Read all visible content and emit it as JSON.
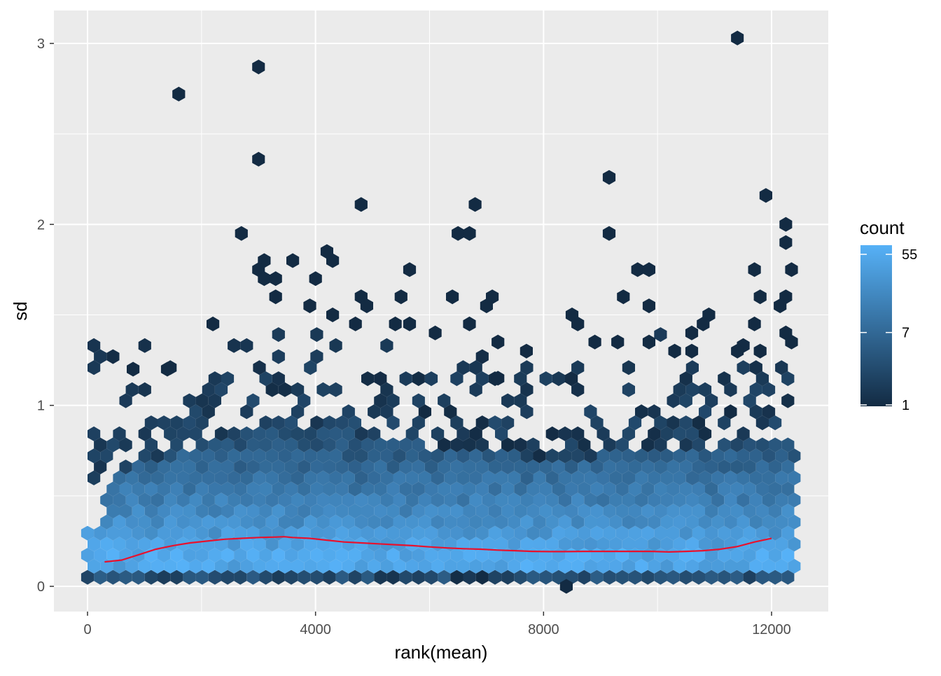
{
  "chart_data": {
    "type": "hexbin",
    "title": "",
    "xlabel": "rank(mean)",
    "ylabel": "sd",
    "xlim": [
      -750,
      13000
    ],
    "ylim": [
      -0.14,
      3.16
    ],
    "x_ticks": [
      0,
      4000,
      8000,
      12000
    ],
    "x_tick_labels": [
      "0",
      "4000",
      "8000",
      "12000"
    ],
    "y_ticks": [
      0,
      1,
      2,
      3
    ],
    "y_tick_labels": [
      "0",
      "1",
      "2",
      "3"
    ],
    "grid": true,
    "legend": {
      "title": "count",
      "placement": "right",
      "scale": "log",
      "breaks": [
        55,
        7,
        1
      ],
      "break_labels": [
        "55",
        "7",
        "1"
      ],
      "range": [
        1,
        70
      ],
      "low_color": "#132B43",
      "high_color": "#56B1F7"
    },
    "density_profile": {
      "note": "",
      "x": [
        0,
        1500,
        3000,
        4500,
        6000,
        7500,
        9000,
        10500,
        12000
      ],
      "core_top_sd": [
        0.55,
        0.75,
        0.85,
        0.85,
        0.78,
        0.72,
        0.72,
        0.75,
        0.8
      ],
      "peak_sd": 0.15
    },
    "outliers": [
      {
        "x": 1600,
        "y": 2.72
      },
      {
        "x": 3000,
        "y": 2.87
      },
      {
        "x": 3000,
        "y": 2.36
      },
      {
        "x": 11400,
        "y": 3.03
      },
      {
        "x": 9150,
        "y": 2.26
      },
      {
        "x": 11900,
        "y": 2.16
      },
      {
        "x": 4800,
        "y": 2.11
      },
      {
        "x": 6800,
        "y": 2.11
      },
      {
        "x": 2700,
        "y": 1.95
      },
      {
        "x": 6500,
        "y": 1.95
      },
      {
        "x": 6700,
        "y": 1.95
      },
      {
        "x": 9150,
        "y": 1.95
      },
      {
        "x": 12250,
        "y": 2.0
      },
      {
        "x": 12250,
        "y": 1.9
      },
      {
        "x": 4200,
        "y": 1.85
      },
      {
        "x": 4300,
        "y": 1.8
      },
      {
        "x": 3100,
        "y": 1.8
      },
      {
        "x": 3600,
        "y": 1.8
      },
      {
        "x": 3000,
        "y": 1.75
      },
      {
        "x": 5650,
        "y": 1.75
      },
      {
        "x": 9650,
        "y": 1.75
      },
      {
        "x": 9850,
        "y": 1.75
      },
      {
        "x": 11700,
        "y": 1.75
      },
      {
        "x": 12350,
        "y": 1.75
      },
      {
        "x": 3100,
        "y": 1.7
      },
      {
        "x": 3300,
        "y": 1.7
      },
      {
        "x": 4000,
        "y": 1.7
      },
      {
        "x": 3300,
        "y": 1.6
      },
      {
        "x": 4800,
        "y": 1.6
      },
      {
        "x": 5500,
        "y": 1.6
      },
      {
        "x": 6400,
        "y": 1.6
      },
      {
        "x": 7100,
        "y": 1.6
      },
      {
        "x": 9400,
        "y": 1.6
      },
      {
        "x": 11800,
        "y": 1.6
      },
      {
        "x": 12250,
        "y": 1.6
      },
      {
        "x": 3900,
        "y": 1.55
      },
      {
        "x": 4900,
        "y": 1.55
      },
      {
        "x": 7000,
        "y": 1.55
      },
      {
        "x": 9850,
        "y": 1.55
      },
      {
        "x": 12150,
        "y": 1.55
      },
      {
        "x": 8500,
        "y": 1.5
      },
      {
        "x": 10900,
        "y": 1.5
      },
      {
        "x": 4300,
        "y": 1.5
      },
      {
        "x": 2200,
        "y": 1.45
      },
      {
        "x": 4700,
        "y": 1.45
      },
      {
        "x": 5400,
        "y": 1.45
      },
      {
        "x": 5650,
        "y": 1.45
      },
      {
        "x": 6700,
        "y": 1.45
      },
      {
        "x": 8600,
        "y": 1.45
      },
      {
        "x": 10800,
        "y": 1.45
      },
      {
        "x": 11700,
        "y": 1.45
      },
      {
        "x": 10600,
        "y": 1.4
      },
      {
        "x": 12250,
        "y": 1.4
      },
      {
        "x": 6100,
        "y": 1.4
      },
      {
        "x": 7200,
        "y": 1.35
      },
      {
        "x": 8900,
        "y": 1.35
      },
      {
        "x": 9300,
        "y": 1.35
      },
      {
        "x": 9850,
        "y": 1.35
      },
      {
        "x": 12350,
        "y": 1.35
      },
      {
        "x": 7700,
        "y": 1.3
      },
      {
        "x": 10300,
        "y": 1.3
      },
      {
        "x": 10600,
        "y": 1.3
      },
      {
        "x": 11400,
        "y": 1.3
      },
      {
        "x": 11800,
        "y": 1.3
      },
      {
        "x": 7200,
        "y": 1.15
      },
      {
        "x": 800,
        "y": 1.2
      },
      {
        "x": 1400,
        "y": 1.2
      },
      {
        "x": 8400,
        "y": 0.0
      }
    ],
    "smooth_line": {
      "color": "#e8112d",
      "x": [
        300,
        600,
        900,
        1200,
        1500,
        1800,
        2100,
        2400,
        2700,
        3000,
        3300,
        3450,
        3600,
        3900,
        4200,
        4500,
        4800,
        5100,
        5400,
        5700,
        6000,
        6300,
        6600,
        6900,
        7200,
        7500,
        7800,
        8100,
        8400,
        8700,
        9000,
        9300,
        9600,
        9900,
        10200,
        10500,
        10800,
        11100,
        11400,
        11700,
        12000
      ],
      "y": [
        0.135,
        0.145,
        0.175,
        0.205,
        0.225,
        0.24,
        0.25,
        0.26,
        0.265,
        0.27,
        0.272,
        0.274,
        0.27,
        0.265,
        0.255,
        0.245,
        0.24,
        0.235,
        0.23,
        0.225,
        0.218,
        0.212,
        0.208,
        0.205,
        0.2,
        0.197,
        0.193,
        0.192,
        0.192,
        0.193,
        0.193,
        0.193,
        0.193,
        0.193,
        0.19,
        0.193,
        0.197,
        0.205,
        0.22,
        0.245,
        0.265
      ]
    }
  }
}
